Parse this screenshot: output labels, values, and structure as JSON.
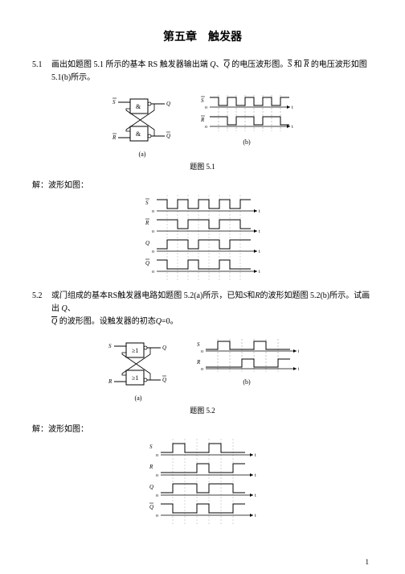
{
  "chapter_title": "第五章　触发器",
  "problems": {
    "p51": {
      "num": "5.1",
      "text_parts": [
        "画出如题图 5.1 所示的基本 RS 触发器输出端 ",
        "、",
        " 的电压波形图。",
        " 和 ",
        " 的电压波形如图 5.1(b)所示。"
      ],
      "symbols": {
        "Q": "Q",
        "Qbar": "Q",
        "Sbar": "S",
        "Rbar": "R"
      },
      "caption": "题图 5.1",
      "sub_a": "(a)",
      "sub_b": "(b)",
      "answer_label": "解：波形如图：",
      "circuit": {
        "gate_label": "&",
        "ports": {
          "S": "S",
          "R": "R",
          "Q": "Q",
          "Qbar": "Q"
        },
        "colors": {
          "line": "#000000",
          "bg": "#ffffff"
        }
      },
      "wave_b": {
        "signals": [
          "S",
          "R"
        ],
        "axis_label": "o",
        "time_label": "t",
        "S_pattern": [
          0,
          1,
          0,
          1,
          0,
          1,
          0,
          1,
          0
        ],
        "R_pattern": [
          0,
          0,
          1,
          0,
          0,
          1,
          0,
          0,
          1
        ],
        "colors": {
          "line": "#000000",
          "dash": "#888888"
        }
      },
      "answer_wave": {
        "signals": [
          "S",
          "R",
          "Q",
          "Q"
        ],
        "overlines": [
          true,
          true,
          false,
          true
        ],
        "axis_label": "o",
        "time_label": "t",
        "patterns": {
          "S": [
            1,
            0,
            1,
            0,
            1,
            0,
            1,
            0,
            1
          ],
          "R": [
            1,
            1,
            0,
            1,
            1,
            0,
            1,
            1,
            0
          ],
          "Q": [
            0,
            1,
            1,
            0,
            1,
            1,
            0,
            1,
            1
          ],
          "Qbar": [
            1,
            0,
            0,
            1,
            0,
            0,
            1,
            0,
            0
          ]
        },
        "colors": {
          "line": "#000000",
          "dash": "#aaaaaa"
        }
      }
    },
    "p52": {
      "num": "5.2",
      "text_parts": [
        "或门组成的基本RS触发器电路如题图 5.2(a)所示，已知",
        "和",
        "的波形如题图 5.2(b)所示。试画出 ",
        "、",
        " 的波形图。设触发器的初态",
        "=0。"
      ],
      "symbols": {
        "S": "S",
        "R": "R",
        "Q": "Q",
        "Qbar": "Q"
      },
      "caption": "题图 5.2",
      "sub_a": "(a)",
      "sub_b": "(b)",
      "answer_label": "解：波形如图：",
      "circuit": {
        "gate_label": "≥1",
        "ports": {
          "S": "S",
          "R": "R",
          "Q": "Q",
          "Qbar": "Q"
        },
        "colors": {
          "line": "#000000",
          "bg": "#ffffff"
        }
      },
      "wave_b": {
        "signals": [
          "S",
          "R"
        ],
        "axis_label": "o",
        "time_label": "t",
        "S_pattern": [
          0,
          1,
          0,
          0,
          1,
          0,
          0
        ],
        "R_pattern": [
          0,
          0,
          0,
          1,
          0,
          0,
          1
        ],
        "colors": {
          "line": "#000000",
          "dash": "#888888"
        }
      },
      "answer_wave": {
        "signals": [
          "S",
          "R",
          "Q",
          "Q"
        ],
        "overlines": [
          false,
          false,
          false,
          true
        ],
        "axis_label": "o",
        "time_label": "t",
        "patterns": {
          "S": [
            0,
            1,
            0,
            0,
            1,
            0,
            0
          ],
          "R": [
            0,
            0,
            0,
            1,
            0,
            0,
            1
          ],
          "Q": [
            0,
            1,
            1,
            0,
            1,
            1,
            0
          ],
          "Qbar": [
            1,
            0,
            0,
            1,
            0,
            0,
            1
          ]
        },
        "colors": {
          "line": "#000000",
          "dash": "#aaaaaa"
        }
      }
    }
  },
  "page_number": "1"
}
